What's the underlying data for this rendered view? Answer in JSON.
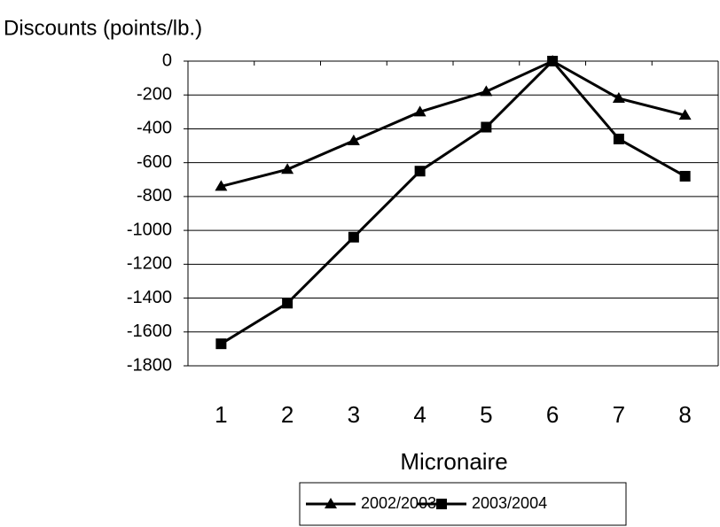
{
  "chart_data": {
    "type": "line",
    "title": "Discounts (points/lb.)",
    "x_label": "Micronaire",
    "categories": [
      "1",
      "2",
      "3",
      "4",
      "5",
      "6",
      "7",
      "8"
    ],
    "series": [
      {
        "name": "2002/2003",
        "color": "#000000",
        "marker": "triangle",
        "values": [
          -740,
          -640,
          -470,
          -300,
          -180,
          0,
          -220,
          -320
        ]
      },
      {
        "name": "2003/2004",
        "color": "#000000",
        "marker": "square",
        "values": [
          -1670,
          -1430,
          -1040,
          -650,
          -390,
          0,
          -460,
          -680
        ]
      }
    ],
    "ylim": [
      -1800,
      0
    ],
    "yticks": [
      0,
      -200,
      -400,
      -600,
      -800,
      -1000,
      -1200,
      -1400,
      -1600,
      -1800
    ],
    "grid": true,
    "legend": "bottom"
  }
}
